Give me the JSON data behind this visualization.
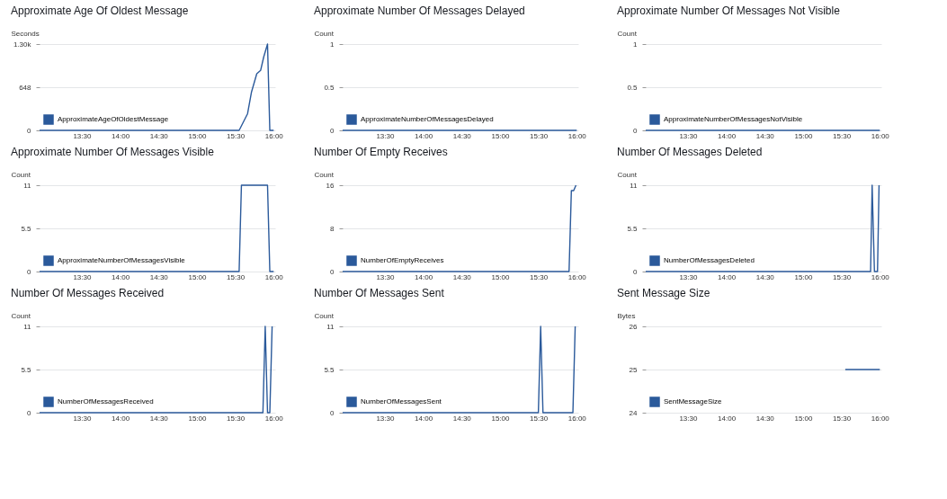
{
  "chart_data": [
    {
      "type": "line",
      "title": "Approximate Age Of Oldest Message",
      "ylabel": "Seconds",
      "xlim": [
        12.95,
        16.02
      ],
      "xticks": [
        {
          "value": 13.5,
          "label": "13:30"
        },
        {
          "value": 14,
          "label": "14:00"
        },
        {
          "value": 14.5,
          "label": "14:30"
        },
        {
          "value": 15,
          "label": "15:00"
        },
        {
          "value": 15.5,
          "label": "15:30"
        },
        {
          "value": 16,
          "label": "16:00"
        }
      ],
      "ylim": [
        0,
        1296
      ],
      "yticks": [
        0,
        648,
        {
          "value": 1296,
          "label": "1.30k"
        }
      ],
      "grid": "y",
      "legend": "bottom left",
      "x": [
        12.95,
        15.55,
        15.66,
        15.71,
        15.78,
        15.83,
        15.87,
        15.92,
        15.95,
        16.0
      ],
      "series": [
        {
          "name": "ApproximateAgeOfOldestMessage",
          "color": "#2b5a9b",
          "values": [
            0,
            0,
            250,
            570,
            850,
            900,
            1100,
            1296,
            0,
            0
          ]
        }
      ]
    },
    {
      "type": "line",
      "title": "Approximate Number Of Messages Delayed",
      "ylabel": "Count",
      "xlim": [
        12.95,
        16.02
      ],
      "xticks": [
        {
          "value": 13.5,
          "label": "13:30"
        },
        {
          "value": 14,
          "label": "14:00"
        },
        {
          "value": 14.5,
          "label": "14:30"
        },
        {
          "value": 15,
          "label": "15:00"
        },
        {
          "value": 15.5,
          "label": "15:30"
        },
        {
          "value": 16,
          "label": "16:00"
        }
      ],
      "ylim": [
        0,
        1
      ],
      "yticks": [
        0,
        0.5,
        1
      ],
      "grid": "y",
      "legend": "bottom left",
      "x": [
        12.95,
        16.0
      ],
      "series": [
        {
          "name": "ApproximateNumberOfMessagesDelayed",
          "color": "#2b5a9b",
          "values": [
            0,
            0
          ]
        }
      ]
    },
    {
      "type": "line",
      "title": "Approximate Number Of Messages Not Visible",
      "ylabel": "Count",
      "xlim": [
        12.95,
        16.02
      ],
      "xticks": [
        {
          "value": 13.5,
          "label": "13:30"
        },
        {
          "value": 14,
          "label": "14:00"
        },
        {
          "value": 14.5,
          "label": "14:30"
        },
        {
          "value": 15,
          "label": "15:00"
        },
        {
          "value": 15.5,
          "label": "15:30"
        },
        {
          "value": 16,
          "label": "16:00"
        }
      ],
      "ylim": [
        0,
        1
      ],
      "yticks": [
        0,
        0.5,
        1
      ],
      "grid": "y",
      "legend": "bottom left",
      "x": [
        12.95,
        16.0
      ],
      "series": [
        {
          "name": "ApproximateNumberOfMessagesNotVisible",
          "color": "#2b5a9b",
          "values": [
            0,
            0
          ]
        }
      ]
    },
    {
      "type": "line",
      "title": "Approximate Number Of Messages Visible",
      "ylabel": "Count",
      "xlim": [
        12.95,
        16.02
      ],
      "xticks": [
        {
          "value": 13.5,
          "label": "13:30"
        },
        {
          "value": 14,
          "label": "14:00"
        },
        {
          "value": 14.5,
          "label": "14:30"
        },
        {
          "value": 15,
          "label": "15:00"
        },
        {
          "value": 15.5,
          "label": "15:30"
        },
        {
          "value": 16,
          "label": "16:00"
        }
      ],
      "ylim": [
        0,
        11
      ],
      "yticks": [
        0,
        5.5,
        11
      ],
      "grid": "y",
      "legend": "bottom left",
      "x": [
        12.95,
        15.55,
        15.58,
        15.92,
        15.95,
        16.0
      ],
      "series": [
        {
          "name": "ApproximateNumberOfMessagesVisible",
          "color": "#2b5a9b",
          "values": [
            0,
            0,
            11,
            11,
            0,
            0
          ]
        }
      ]
    },
    {
      "type": "line",
      "title": "Number Of Empty Receives",
      "ylabel": "Count",
      "xlim": [
        12.95,
        16.02
      ],
      "xticks": [
        {
          "value": 13.5,
          "label": "13:30"
        },
        {
          "value": 14,
          "label": "14:00"
        },
        {
          "value": 14.5,
          "label": "14:30"
        },
        {
          "value": 15,
          "label": "15:00"
        },
        {
          "value": 15.5,
          "label": "15:30"
        },
        {
          "value": 16,
          "label": "16:00"
        }
      ],
      "ylim": [
        0,
        16
      ],
      "yticks": [
        0,
        8,
        16
      ],
      "grid": "y",
      "legend": "bottom left",
      "x": [
        12.95,
        15.9,
        15.93,
        15.96,
        15.99
      ],
      "series": [
        {
          "name": "NumberOfEmptyReceives",
          "color": "#2b5a9b",
          "values": [
            0,
            0,
            15,
            15,
            16
          ]
        }
      ]
    },
    {
      "type": "line",
      "title": "Number Of Messages Deleted",
      "ylabel": "Count",
      "xlim": [
        12.95,
        16.02
      ],
      "xticks": [
        {
          "value": 13.5,
          "label": "13:30"
        },
        {
          "value": 14,
          "label": "14:00"
        },
        {
          "value": 14.5,
          "label": "14:30"
        },
        {
          "value": 15,
          "label": "15:00"
        },
        {
          "value": 15.5,
          "label": "15:30"
        },
        {
          "value": 16,
          "label": "16:00"
        }
      ],
      "ylim": [
        0,
        11
      ],
      "yticks": [
        0,
        5.5,
        11
      ],
      "grid": "y",
      "legend": "bottom left",
      "x": [
        12.95,
        15.88,
        15.9,
        15.93,
        15.97,
        15.99
      ],
      "series": [
        {
          "name": "NumberOfMessagesDeleted",
          "color": "#2b5a9b",
          "values": [
            0,
            0,
            11,
            0,
            0,
            11
          ]
        }
      ]
    },
    {
      "type": "line",
      "title": "Number Of Messages Received",
      "ylabel": "Count",
      "xlim": [
        12.95,
        16.02
      ],
      "xticks": [
        {
          "value": 13.5,
          "label": "13:30"
        },
        {
          "value": 14,
          "label": "14:00"
        },
        {
          "value": 14.5,
          "label": "14:30"
        },
        {
          "value": 15,
          "label": "15:00"
        },
        {
          "value": 15.5,
          "label": "15:30"
        },
        {
          "value": 16,
          "label": "16:00"
        }
      ],
      "ylim": [
        0,
        11
      ],
      "yticks": [
        0,
        5.5,
        11
      ],
      "grid": "y",
      "legend": "bottom left",
      "x": [
        12.95,
        15.86,
        15.89,
        15.92,
        15.95,
        15.98
      ],
      "series": [
        {
          "name": "NumberOfMessagesReceived",
          "color": "#2b5a9b",
          "values": [
            0,
            0,
            11,
            0,
            0,
            11
          ]
        }
      ]
    },
    {
      "type": "line",
      "title": "Number Of Messages Sent",
      "ylabel": "Count",
      "xlim": [
        12.95,
        16.02
      ],
      "xticks": [
        {
          "value": 13.5,
          "label": "13:30"
        },
        {
          "value": 14,
          "label": "14:00"
        },
        {
          "value": 14.5,
          "label": "14:30"
        },
        {
          "value": 15,
          "label": "15:00"
        },
        {
          "value": 15.5,
          "label": "15:30"
        },
        {
          "value": 16,
          "label": "16:00"
        }
      ],
      "ylim": [
        0,
        11
      ],
      "yticks": [
        0,
        5.5,
        11
      ],
      "grid": "y",
      "legend": "bottom left",
      "x": [
        12.95,
        15.5,
        15.53,
        15.56,
        15.95,
        15.98
      ],
      "series": [
        {
          "name": "NumberOfMessagesSent",
          "color": "#2b5a9b",
          "values": [
            0,
            0,
            11,
            0,
            0,
            11
          ]
        }
      ]
    },
    {
      "type": "line",
      "title": "Sent Message Size",
      "ylabel": "Bytes",
      "xlim": [
        12.95,
        16.02
      ],
      "xticks": [
        {
          "value": 13.5,
          "label": "13:30"
        },
        {
          "value": 14,
          "label": "14:00"
        },
        {
          "value": 14.5,
          "label": "14:30"
        },
        {
          "value": 15,
          "label": "15:00"
        },
        {
          "value": 15.5,
          "label": "15:30"
        },
        {
          "value": 16,
          "label": "16:00"
        }
      ],
      "ylim": [
        24,
        26
      ],
      "yticks": [
        24,
        25,
        26
      ],
      "grid": "y",
      "legend": "bottom left",
      "x": [
        15.55,
        16.0
      ],
      "series": [
        {
          "name": "SentMessageSize",
          "color": "#2b5a9b",
          "values": [
            25,
            25
          ]
        }
      ]
    }
  ]
}
